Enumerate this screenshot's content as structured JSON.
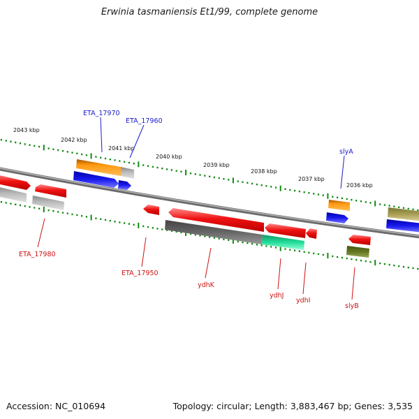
{
  "title": "Erwinia tasmaniensis Et1/99, complete genome",
  "footer": {
    "accession": "Accession: NC_010694",
    "summary": "Topology: circular; Length: 3,883,467 bp; Genes: 3,535"
  },
  "scale_labels": [
    "2043 kbp",
    "2042 kbp",
    "2041 kbp",
    "2040 kbp",
    "2039 kbp",
    "2038 kbp",
    "2037 kbp",
    "2036 kbp"
  ],
  "gene_labels": {
    "forward": [
      "ETA_17970",
      "ETA_17960",
      "slyA"
    ],
    "reverse": [
      "ETA_17980",
      "ETA_17950",
      "ydhK",
      "ydhJ",
      "ydhI",
      "slyB"
    ]
  },
  "colors": {
    "red": "#ee1111",
    "orange": "#ee8a00",
    "blue": "#1a1aee",
    "gray_light": "#bbbbbb",
    "gray_dark": "#666666",
    "teal": "#22dd99",
    "olive": "#aaa055",
    "olive_dark": "#667722",
    "green_tick": "#118811",
    "label_forward": "#1a1acc",
    "label_reverse": "#cc1111",
    "backbone": "#888888"
  }
}
